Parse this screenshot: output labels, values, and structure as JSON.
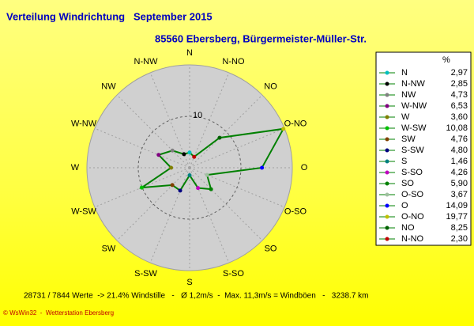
{
  "chart_data": {
    "type": "radar",
    "title": "Verteilung Windrichtung   September 2015",
    "subtitle": "85560 Ebersberg, Bürgermeister-Müller-Str.",
    "categories": [
      "N",
      "N-NW",
      "NW",
      "W-NW",
      "W",
      "W-SW",
      "SW",
      "S-SW",
      "S",
      "S-SO",
      "SO",
      "O-SO",
      "O",
      "O-NO",
      "NO",
      "N-NO"
    ],
    "values": [
      2.97,
      2.85,
      4.73,
      6.53,
      3.6,
      10.08,
      4.76,
      4.8,
      1.46,
      4.26,
      5.9,
      3.67,
      14.09,
      19.77,
      8.25,
      2.3
    ],
    "value_labels": [
      "2,97",
      "2,85",
      "4,73",
      "6,53",
      "3,60",
      "10,08",
      "4,76",
      "4,80",
      "1,46",
      "4,26",
      "5,90",
      "3,67",
      "14,09",
      "19,77",
      "8,25",
      "2,30"
    ],
    "colors": [
      "#00c0c0",
      "#000000",
      "#808080",
      "#800080",
      "#808000",
      "#00c000",
      "#804000",
      "#000080",
      "#008080",
      "#c000c0",
      "#008000",
      "#a0c0a0",
      "#0000ff",
      "#c0c000",
      "#006000",
      "#c00000"
    ],
    "line_color": "#008000",
    "legend_unit": "%",
    "rlim": [
      0,
      20
    ],
    "rticks": [
      10
    ],
    "footer": "28731 / 7844 Werte  -> 21.4% Windstille   -   Ø 1,2m/s  -  Max. 11,3m/s = Windböen   -   3238.7 km",
    "credit": "© WsWin32  -  Wetterstation Ebersberg"
  }
}
